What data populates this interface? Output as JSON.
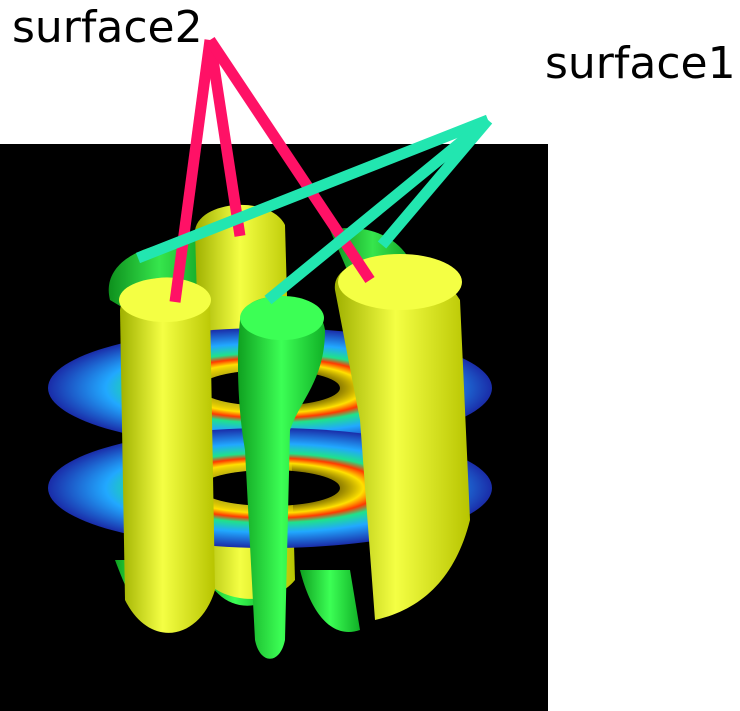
{
  "labels": {
    "surface2": "surface2",
    "surface1": "surface1"
  },
  "colors": {
    "surface2_leader": "#ff1166",
    "surface1_leader": "#22e6b0",
    "surface2_fill": "#e8f51a",
    "surface1_fill": "#22e83a",
    "background": "#000000"
  }
}
